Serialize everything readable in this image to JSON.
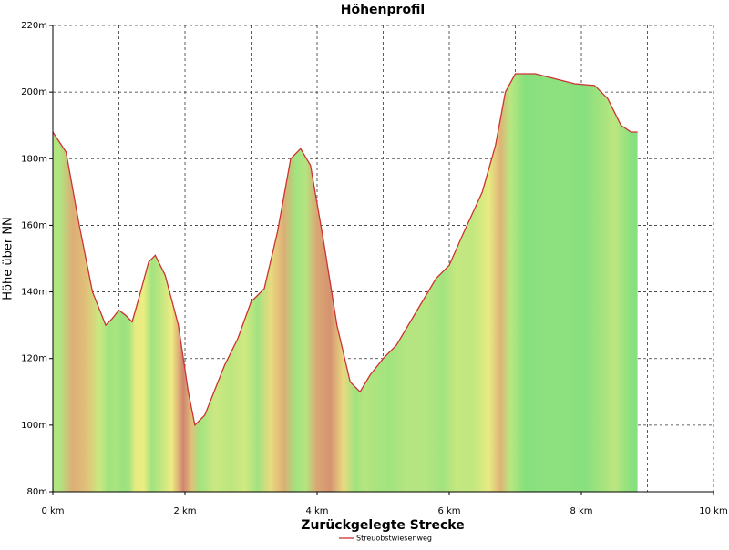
{
  "chart_data": {
    "type": "area",
    "title": "Höhenprofil",
    "x_label": "Zurückgelegte Strecke",
    "y_label": "Höhe über NN",
    "x": [
      0,
      0.2,
      0.4,
      0.6,
      0.8,
      0.9,
      1.0,
      1.1,
      1.2,
      1.3,
      1.45,
      1.55,
      1.7,
      1.9,
      2.05,
      2.15,
      2.3,
      2.6,
      2.8,
      3.0,
      3.2,
      3.4,
      3.6,
      3.75,
      3.9,
      4.1,
      4.3,
      4.5,
      4.65,
      4.8,
      5.0,
      5.2,
      5.5,
      5.8,
      6.0,
      6.2,
      6.5,
      6.7,
      6.85,
      7.0,
      7.3,
      7.6,
      7.9,
      8.2,
      8.4,
      8.6,
      8.75,
      8.85
    ],
    "series": [
      {
        "name": "Streuobstwiesenweg",
        "color": "#cc3333",
        "values": [
          188,
          182,
          160,
          140,
          130,
          132,
          134.5,
          133,
          131,
          138,
          149,
          151,
          145,
          130,
          110,
          100,
          103,
          118,
          126,
          137,
          141,
          158,
          180,
          183,
          178,
          155,
          130,
          113,
          110,
          115,
          120,
          124,
          134,
          144,
          148,
          157,
          170,
          184,
          200,
          205.5,
          205.5,
          204,
          202.5,
          202,
          198,
          190,
          188,
          188
        ]
      }
    ],
    "xlim": [
      0,
      10
    ],
    "xticks": [
      {
        "value": 0,
        "label": "0 km"
      },
      {
        "value": 2,
        "label": "2 km"
      },
      {
        "value": 4,
        "label": "4 km"
      },
      {
        "value": 6,
        "label": "6 km"
      },
      {
        "value": 8,
        "label": "8 km"
      },
      {
        "value": 10,
        "label": "10 km"
      }
    ],
    "ylim": [
      80,
      220
    ],
    "yticks": [
      {
        "value": 80,
        "label": "80m"
      },
      {
        "value": 100,
        "label": "100m"
      },
      {
        "value": 120,
        "label": "120m"
      },
      {
        "value": 140,
        "label": "140m"
      },
      {
        "value": 160,
        "label": "160m"
      },
      {
        "value": 180,
        "label": "180m"
      },
      {
        "value": 200,
        "label": "200m"
      },
      {
        "value": 220,
        "label": "220m"
      }
    ],
    "grid": true,
    "legend": "bottom"
  }
}
